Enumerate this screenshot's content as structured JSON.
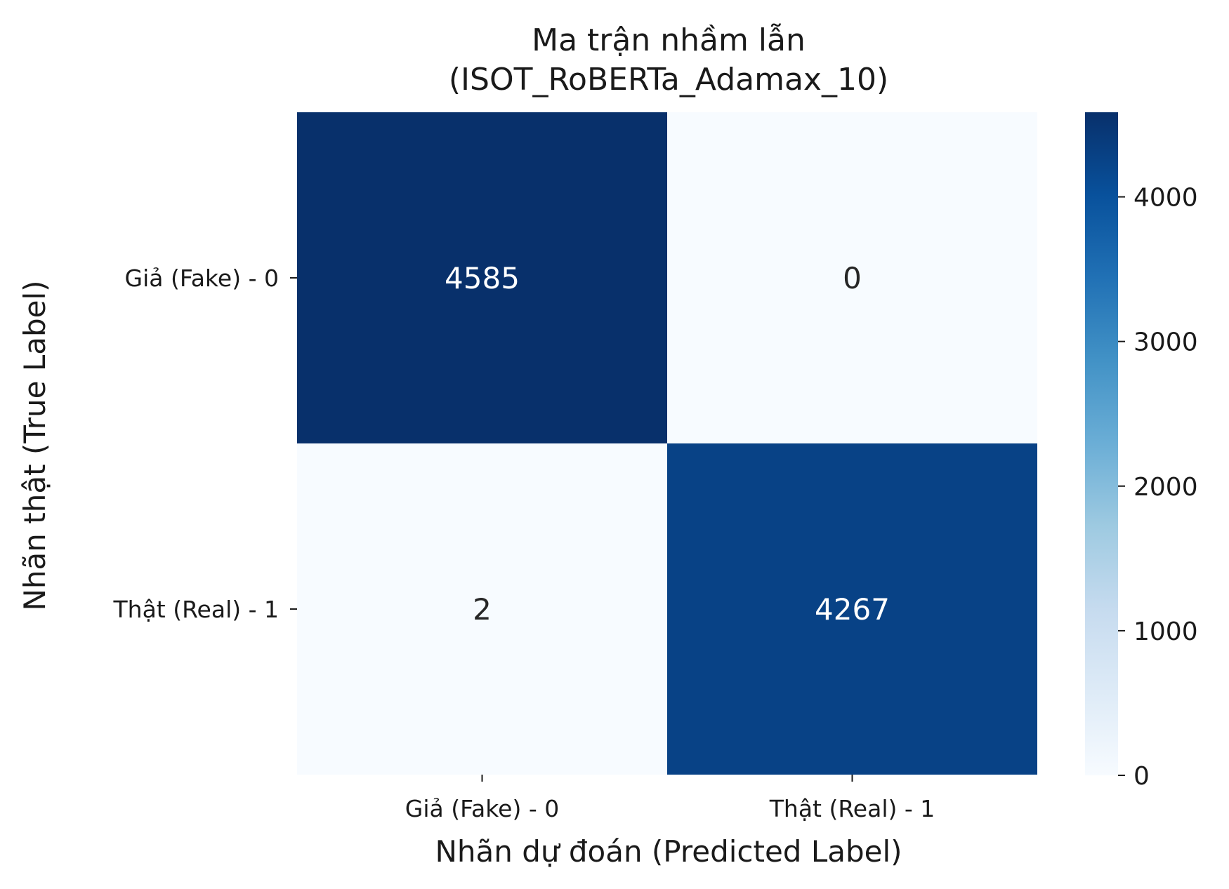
{
  "chart_data": {
    "type": "heatmap",
    "title_line1": "Ma trận nhầm lẫn",
    "title_line2": "(ISOT_RoBERTa_Adamax_10)",
    "xlabel": "Nhãn dự đoán (Predicted Label)",
    "ylabel": "Nhãn thật (True Label)",
    "x_categories": [
      "Giả (Fake) - 0",
      "Thật (Real) - 1"
    ],
    "y_categories": [
      "Giả (Fake) - 0",
      "Thật (Real) - 1"
    ],
    "matrix": [
      [
        4585,
        0
      ],
      [
        2,
        4267
      ]
    ],
    "colormap": "Blues",
    "colorbar": {
      "min": 0,
      "max": 4585,
      "ticks": [
        0,
        1000,
        2000,
        3000,
        4000
      ]
    },
    "colors": {
      "high": "#08306b",
      "low": "#f7fbff",
      "text_light": "#ffffff",
      "text_dark": "#262626"
    }
  }
}
